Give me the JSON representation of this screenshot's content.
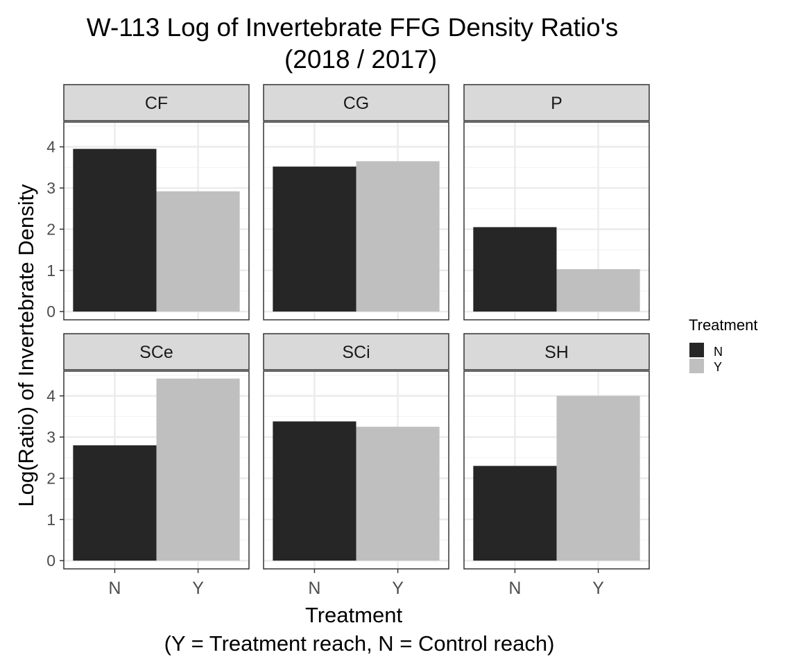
{
  "chart_data": {
    "type": "bar",
    "title": "W-113 Log of Invertebrate FFG Density Ratio's",
    "subtitle": "(2018 / 2017)",
    "xlabel": "Treatment",
    "xlabel_sub": "(Y = Treatment reach, N = Control reach)",
    "ylabel": "Log(Ratio) of Invertebrate Density",
    "categories": [
      "N",
      "Y"
    ],
    "ylim": [
      -0.2,
      4.6
    ],
    "yticks": [
      0,
      1,
      2,
      3,
      4
    ],
    "grid": true,
    "facet_layout": {
      "rows": 2,
      "cols": 3
    },
    "facets": [
      {
        "label": "CF",
        "values": [
          3.95,
          2.92
        ]
      },
      {
        "label": "CG",
        "values": [
          3.52,
          3.65
        ]
      },
      {
        "label": "P",
        "values": [
          2.05,
          1.03
        ]
      },
      {
        "label": "SCe",
        "values": [
          2.8,
          4.42
        ]
      },
      {
        "label": "SCi",
        "values": [
          3.38,
          3.25
        ]
      },
      {
        "label": "SH",
        "values": [
          2.3,
          4.0
        ]
      }
    ],
    "legend": {
      "title": "Treatment",
      "placement": "right",
      "items": [
        {
          "label": "N",
          "color": "#262626"
        },
        {
          "label": "Y",
          "color": "#bfbfbf"
        }
      ]
    }
  }
}
